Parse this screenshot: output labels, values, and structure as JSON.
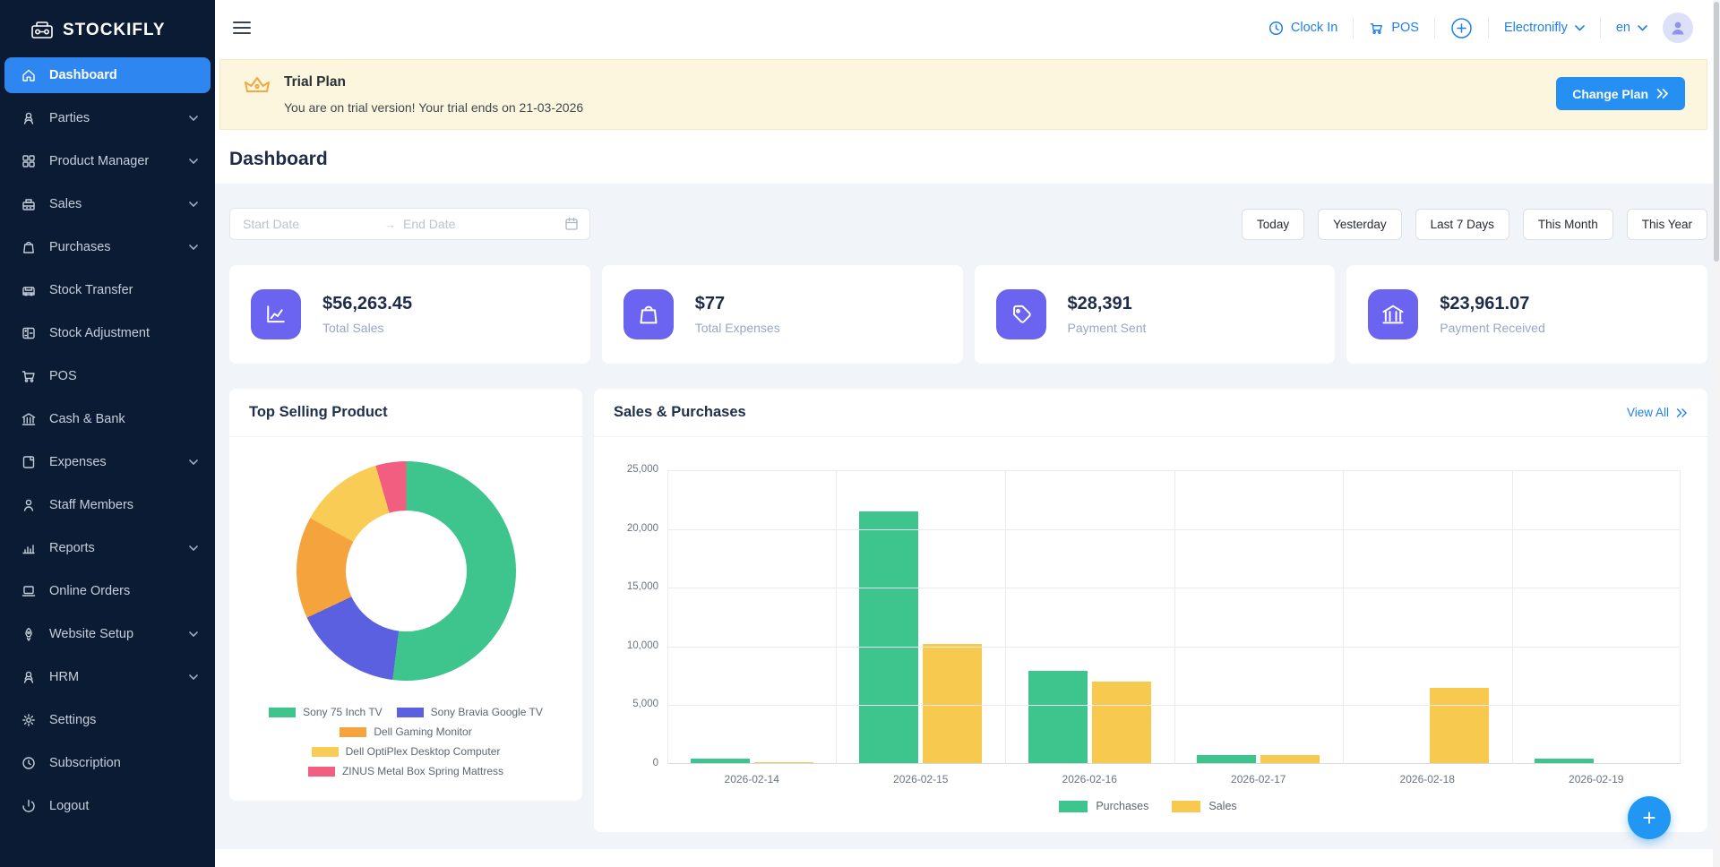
{
  "app": {
    "name": "STOCKIFLY"
  },
  "sidebar": {
    "items": [
      {
        "label": "Dashboard"
      },
      {
        "label": "Parties"
      },
      {
        "label": "Product Manager"
      },
      {
        "label": "Sales"
      },
      {
        "label": "Purchases"
      },
      {
        "label": "Stock Transfer"
      },
      {
        "label": "Stock Adjustment"
      },
      {
        "label": "POS"
      },
      {
        "label": "Cash & Bank"
      },
      {
        "label": "Expenses"
      },
      {
        "label": "Staff Members"
      },
      {
        "label": "Reports"
      },
      {
        "label": "Online Orders"
      },
      {
        "label": "Website Setup"
      },
      {
        "label": "HRM"
      },
      {
        "label": "Settings"
      },
      {
        "label": "Subscription"
      },
      {
        "label": "Logout"
      }
    ]
  },
  "navbar": {
    "clock_in": "Clock In",
    "pos": "POS",
    "store": "Electronifly",
    "language": "en"
  },
  "trial_banner": {
    "title": "Trial Plan",
    "message": "You are on trial version! Your trial ends on 21-03-2026",
    "button": "Change Plan"
  },
  "page": {
    "title": "Dashboard"
  },
  "filters": {
    "start_date_placeholder": "Start Date",
    "end_date_placeholder": "End Date",
    "quick_ranges": [
      "Today",
      "Yesterday",
      "Last 7 Days",
      "This Month",
      "This Year"
    ]
  },
  "stats": [
    {
      "value": "$56,263.45",
      "label": "Total Sales",
      "icon": "chart-line-icon"
    },
    {
      "value": "$77",
      "label": "Total Expenses",
      "icon": "shopping-bag-icon"
    },
    {
      "value": "$28,391",
      "label": "Payment Sent",
      "icon": "tag-icon"
    },
    {
      "value": "$23,961.07",
      "label": "Payment Received",
      "icon": "bank-icon"
    }
  ],
  "panels": {
    "top_selling_title": "Top Selling Product",
    "sales_purchases_title": "Sales & Purchases",
    "view_all": "View All"
  },
  "colors": {
    "sidebar_bg": "#0A1B33",
    "active_item": "#2E86F0",
    "accent_blue": "#2080F0",
    "stat_icon_bg": "#6B64F0",
    "banner_bg": "#FCF6DE",
    "content_bg": "#F1F4F8"
  },
  "chart_data": [
    {
      "type": "pie",
      "title": "Top Selling Product",
      "labels": [
        "Sony 75 Inch TV",
        "Sony Bravia Google TV",
        "Dell Gaming Monitor",
        "Dell OptiPlex Desktop Computer",
        "ZINUS Metal Box Spring Mattress"
      ],
      "values_percent": [
        52,
        16,
        15,
        12.5,
        4.5
      ],
      "colors": [
        "#3EC48D",
        "#5A60E0",
        "#F5A33C",
        "#F8CC55",
        "#F25E80"
      ],
      "donut_hole_ratio": 0.55,
      "legend_rows": [
        [
          0,
          1
        ],
        [
          2
        ],
        [
          3
        ],
        [
          4
        ]
      ],
      "legend_position": "bottom"
    },
    {
      "type": "bar",
      "title": "Sales & Purchases",
      "x": [
        "2026-02-14",
        "2026-02-15",
        "2026-02-16",
        "2026-02-17",
        "2026-02-18",
        "2026-02-19"
      ],
      "series": [
        {
          "name": "Purchases",
          "color": "#3EC48D",
          "values": [
            450,
            21500,
            7900,
            800,
            0,
            450
          ]
        },
        {
          "name": "Sales",
          "color": "#F8C94F",
          "values": [
            150,
            10200,
            7000,
            750,
            6500,
            0
          ]
        }
      ],
      "ylim": [
        0,
        25000
      ],
      "yticks": [
        0,
        5000,
        10000,
        15000,
        20000,
        25000
      ],
      "grid": true,
      "legend_position": "bottom"
    }
  ]
}
